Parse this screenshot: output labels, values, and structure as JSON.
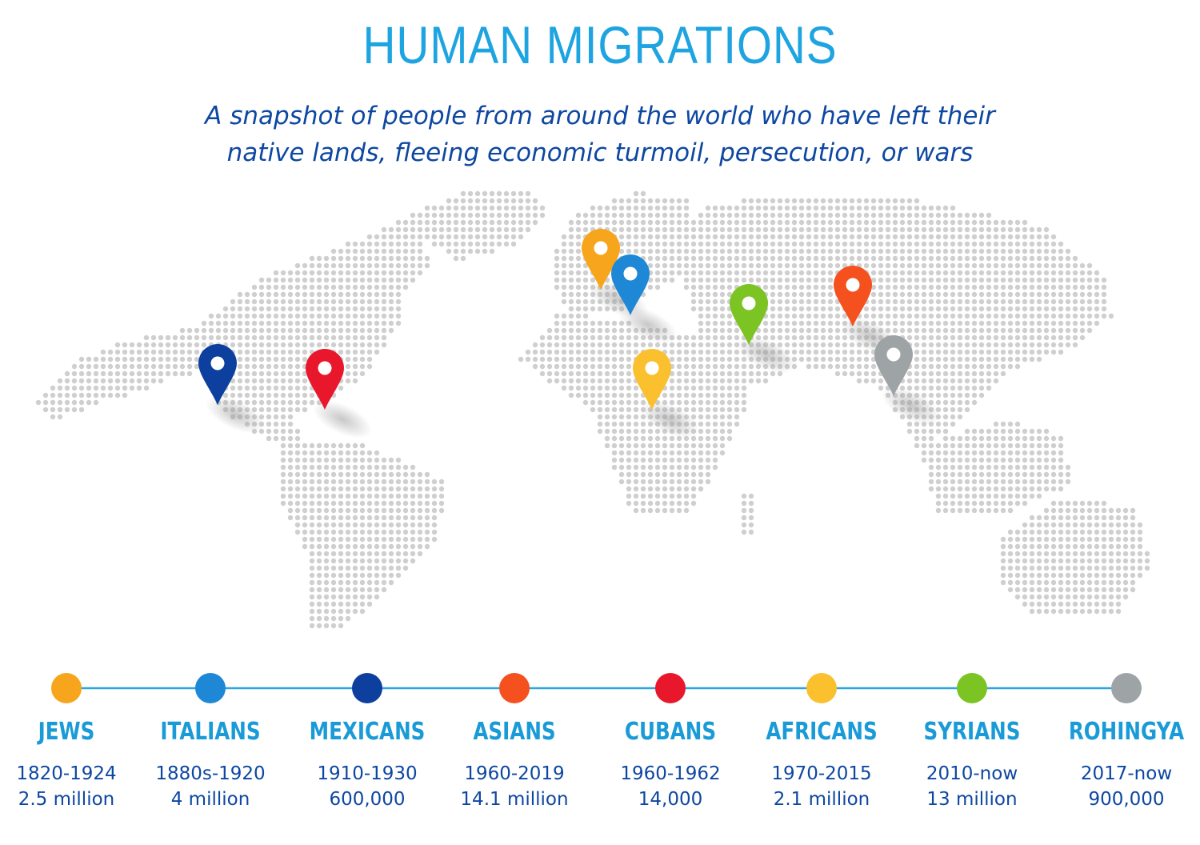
{
  "title": "HUMAN MIGRATIONS",
  "subtitle_line1": "A snapshot of people from around the world who have left their",
  "subtitle_line2": "native lands, fleeing economic turmoil, persecution, or wars",
  "groups": [
    {
      "name": "JEWS",
      "years": "1820-1924",
      "count": "2.5 million",
      "color": "#f7a51c"
    },
    {
      "name": "ITALIANS",
      "years": "1880s-1920",
      "count": "4 million",
      "color": "#1e88d6"
    },
    {
      "name": "MEXICANS",
      "years": "1910-1930",
      "count": "600,000",
      "color": "#0d3f9f"
    },
    {
      "name": "ASIANS",
      "years": "1960-2019",
      "count": "14.1 million",
      "color": "#f4511e"
    },
    {
      "name": "CUBANS",
      "years": "1960-1962",
      "count": "14,000",
      "color": "#e8172c"
    },
    {
      "name": "AFRICANS",
      "years": "1970-2015",
      "count": "2.1 million",
      "color": "#fbc02d"
    },
    {
      "name": "SYRIANS",
      "years": "2010-now",
      "count": "13 million",
      "color": "#7cc324"
    },
    {
      "name": "ROHINGYA",
      "years": "2017-now",
      "count": "900,000",
      "color": "#9ea4a6"
    }
  ],
  "map": {
    "dot_color": "#cfcfcf",
    "line_color": "#2da6e0",
    "pins": [
      {
        "group": "JEWS",
        "color": "#f7a51c"
      },
      {
        "group": "ITALIANS",
        "color": "#1e88d6"
      },
      {
        "group": "MEXICANS",
        "color": "#0d3f9f"
      },
      {
        "group": "ASIANS",
        "color": "#f4511e"
      },
      {
        "group": "CUBANS",
        "color": "#e8172c"
      },
      {
        "group": "AFRICANS",
        "color": "#fbc02d"
      },
      {
        "group": "SYRIANS",
        "color": "#7cc324"
      },
      {
        "group": "ROHINGYA",
        "color": "#9ea4a6"
      }
    ]
  }
}
